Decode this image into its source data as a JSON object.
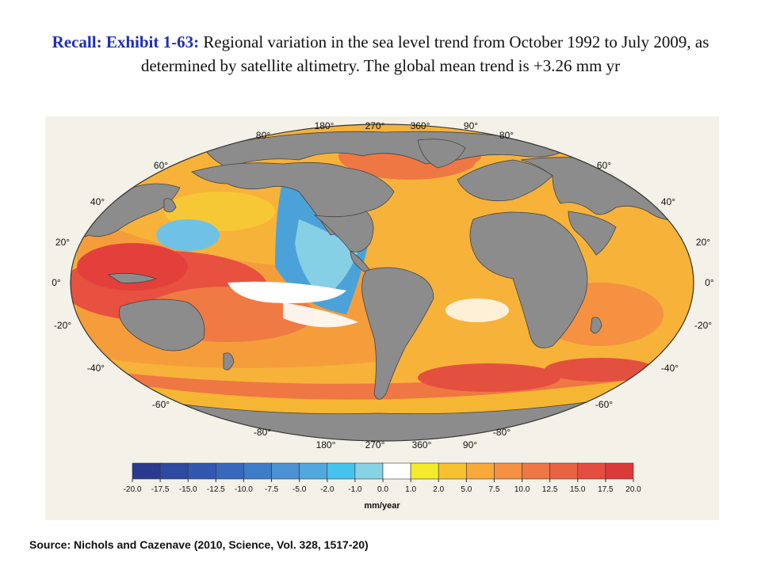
{
  "title": {
    "lead": "Recall: Exhibit 1-63:",
    "text": " Regional variation in the sea level trend from October 1992 to July 2009, as determined by satellite altimetry. The global mean trend is +3.26 mm yr"
  },
  "map": {
    "top_longitude_labels": [
      "180°",
      "270°",
      "360°",
      "90°"
    ],
    "bottom_longitude_labels": [
      "180°",
      "270°",
      "360°",
      "90°"
    ],
    "latitude_labels_left": [
      "80°",
      "60°",
      "40°",
      "20°",
      "0°",
      "-20°",
      "-40°",
      "-60°",
      "-80°"
    ],
    "latitude_labels_right": [
      "80°",
      "60°",
      "40°",
      "20°",
      "0°",
      "-20°",
      "-40°",
      "-60°",
      "-80°"
    ],
    "colors": {
      "land": "#8c8c8c",
      "background": "#f4f1e8"
    }
  },
  "colorbar": {
    "ticks": [
      "-20.0",
      "-17.5",
      "-15.0",
      "-12.5",
      "-10.0",
      "-7.5",
      "-5.0",
      "-2.0",
      "-1.0",
      "0.0",
      "1.0",
      "2.0",
      "5.0",
      "7.5",
      "10.0",
      "12.5",
      "15.0",
      "17.5",
      "20.0"
    ],
    "colors": [
      "#2b3a8f",
      "#2d4aa0",
      "#3157b0",
      "#3668bd",
      "#3d7cc9",
      "#4a92d4",
      "#52a8de",
      "#45c3ef",
      "#86d3e6",
      "#ffffff",
      "#f4ec2a",
      "#f7c230",
      "#f7a93a",
      "#f59140",
      "#ef7744",
      "#ea6244",
      "#e44e40",
      "#db3b38"
    ],
    "unit": "mm/year"
  },
  "source": "Source: Nichols and Cazenave (2010, Science, Vol. 328, 1517-20)"
}
